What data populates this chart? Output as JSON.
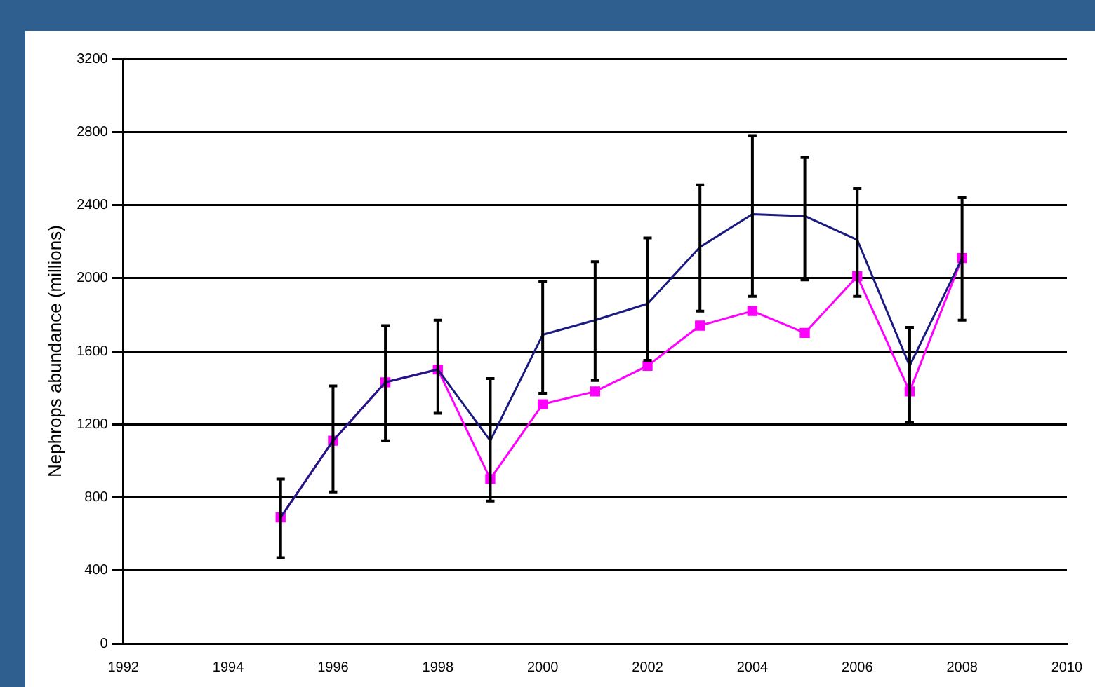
{
  "chart_data": {
    "type": "line",
    "ylabel": "Nephrops abundance (millions)",
    "x": [
      1995,
      1996,
      1997,
      1998,
      1999,
      2000,
      2001,
      2002,
      2003,
      2004,
      2005,
      2006,
      2007,
      2008
    ],
    "series": [
      {
        "color": "#1a1a80",
        "marker": "none",
        "values": [
          690,
          1110,
          1430,
          1500,
          1110,
          1690,
          1770,
          1860,
          2170,
          2350,
          2340,
          2210,
          1520,
          2110
        ],
        "errors": [
          [
            470,
            900
          ],
          [
            830,
            1410
          ],
          [
            1110,
            1740
          ],
          [
            1260,
            1770
          ],
          [
            780,
            1450
          ],
          [
            1370,
            1980
          ],
          [
            1440,
            2090
          ],
          [
            1550,
            2220
          ],
          [
            1820,
            2510
          ],
          [
            1900,
            2780
          ],
          [
            1990,
            2660
          ],
          [
            1900,
            2490
          ],
          [
            1210,
            1730
          ],
          [
            1770,
            2440
          ]
        ]
      },
      {
        "color": "#ff00ff",
        "marker": "square",
        "values": [
          690,
          1110,
          1430,
          1500,
          900,
          1310,
          1380,
          1520,
          1740,
          1820,
          1700,
          2010,
          1380,
          2110
        ]
      }
    ],
    "xlim": [
      1992,
      2010
    ],
    "xticks": [
      1992,
      1994,
      1996,
      1998,
      2000,
      2002,
      2004,
      2006,
      2008,
      2010
    ],
    "ylim": [
      0,
      3200
    ],
    "yticks": [
      0,
      400,
      800,
      1200,
      1600,
      2000,
      2400,
      2800,
      3200
    ],
    "grid": "y",
    "legend": false
  }
}
